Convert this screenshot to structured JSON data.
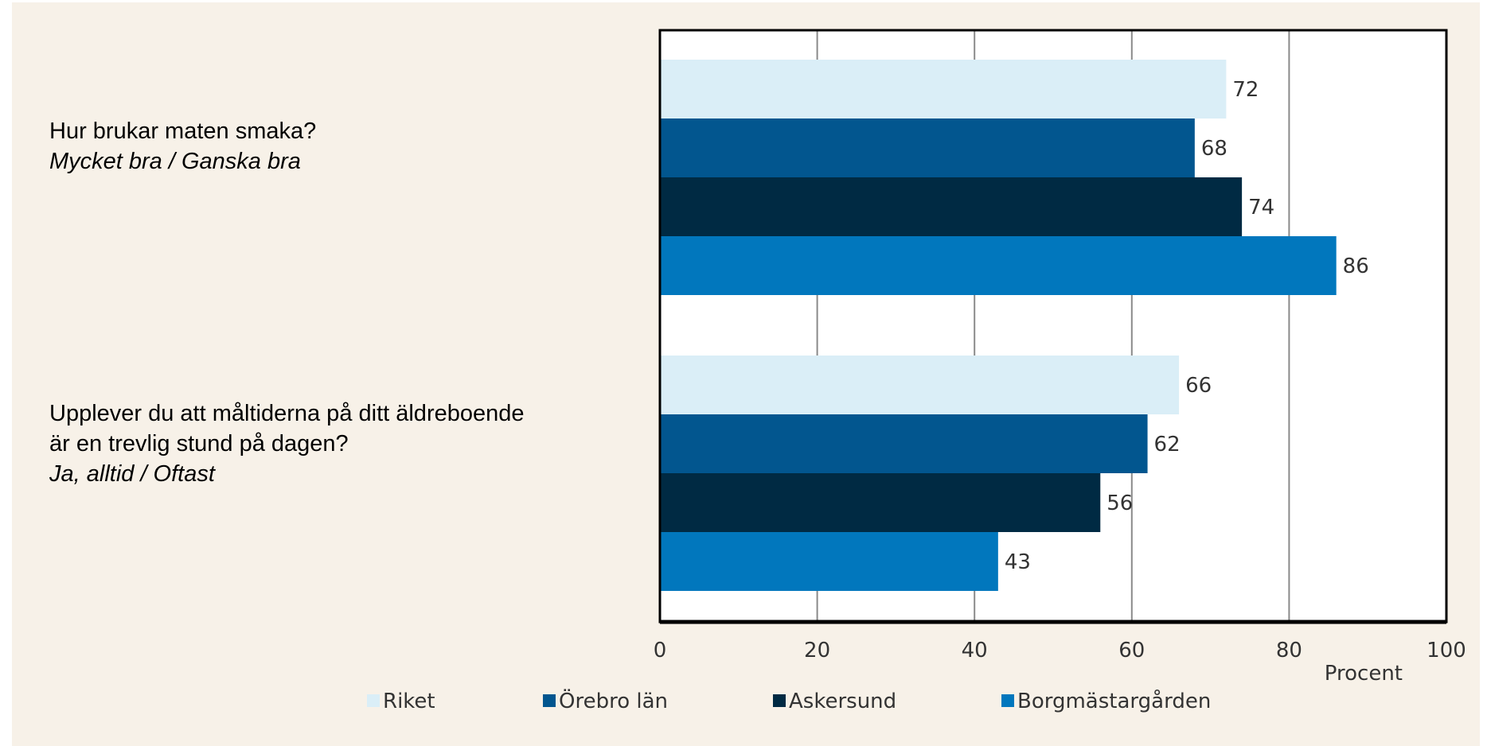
{
  "questions": [
    {
      "line1": "Hur brukar maten smaka?",
      "line2": "",
      "answer": "Mycket bra / Ganska bra"
    },
    {
      "line1": "Upplever du att måltiderna på ditt äldreboende",
      "line2": "är en trevlig stund på dagen?",
      "answer": "Ja, alltid / Oftast"
    }
  ],
  "chart_data": {
    "type": "bar",
    "orientation": "horizontal",
    "categories": [
      "Hur brukar maten smaka? Mycket bra / Ganska bra",
      "Upplever du att måltiderna på ditt äldreboende är en trevlig stund på dagen? Ja, alltid / Oftast"
    ],
    "series": [
      {
        "name": "Riket",
        "color": "#daeef7",
        "values": [
          72,
          66
        ]
      },
      {
        "name": "Örebro län",
        "color": "#02568f",
        "values": [
          68,
          62
        ]
      },
      {
        "name": "Askersund",
        "color": "#002a43",
        "values": [
          74,
          56
        ]
      },
      {
        "name": "Borgmästargården",
        "color": "#0177bd",
        "values": [
          86,
          43
        ]
      }
    ],
    "xlabel": "Procent",
    "xlim": [
      0,
      100
    ],
    "xticks": [
      0,
      20,
      40,
      60,
      80,
      100
    ],
    "grid": true,
    "legend": "bottom"
  }
}
